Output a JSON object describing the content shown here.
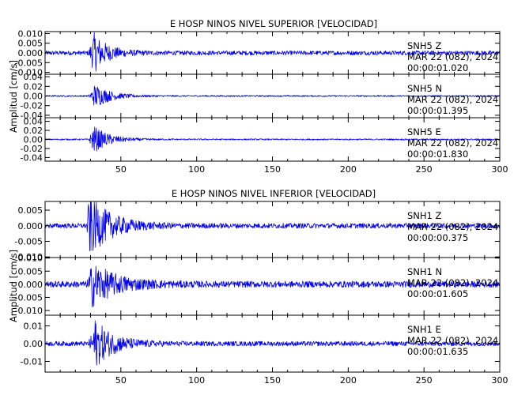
{
  "chart_data": [
    {
      "type": "line",
      "title": "E HOSP NINOS NIVEL SUPERIOR [VELOCIDAD]",
      "ylabel": "Amplitud [cm/s]",
      "xlabel": "",
      "xlim": [
        0,
        300
      ],
      "x_ticks": [
        "50",
        "100",
        "150",
        "200",
        "250",
        "300"
      ],
      "series": [
        {
          "station": "SNH5",
          "channel": "Z",
          "date": "MAR 22 (082), 2024",
          "time": "00:00:01.020",
          "ylim": [
            -0.011,
            0.011
          ],
          "y_ticks": [
            "0.010",
            "0.005",
            "0.000",
            "-0.005",
            "-0.010"
          ],
          "y_tick_values": [
            0.01,
            0.005,
            0.0,
            -0.005,
            -0.01
          ],
          "event_start": 28,
          "peak_time": 32,
          "peak_amplitude": 0.01,
          "noise_amplitude": 0.0011,
          "coda_decay": 9
        },
        {
          "station": "SNH5",
          "channel": "N",
          "date": "MAR 22 (082), 2024",
          "time": "00:00:01.395",
          "ylim": [
            -0.045,
            0.045
          ],
          "y_ticks": [
            "0.04",
            "0.02",
            "0.00",
            "-0.02",
            "-0.04"
          ],
          "y_tick_values": [
            0.04,
            0.02,
            0.0,
            -0.02,
            -0.04
          ],
          "event_start": 28,
          "peak_time": 33,
          "peak_amplitude": 0.025,
          "noise_amplitude": 0.0015,
          "coda_decay": 10
        },
        {
          "station": "SNH5",
          "channel": "E",
          "date": "MAR 22 (082), 2024",
          "time": "00:00:01.830",
          "ylim": [
            -0.048,
            0.048
          ],
          "y_ticks": [
            "0.04",
            "0.02",
            "0.00",
            "-0.02",
            "-0.04"
          ],
          "y_tick_values": [
            0.04,
            0.02,
            0.0,
            -0.02,
            -0.04
          ],
          "event_start": 28,
          "peak_time": 32,
          "peak_amplitude": 0.03,
          "noise_amplitude": 0.0015,
          "coda_decay": 10
        }
      ]
    },
    {
      "type": "line",
      "title": "E HOSP NINOS NIVEL INFERIOR [VELOCIDAD]",
      "ylabel": "Amplitud [cm/s]",
      "xlabel": "",
      "xlim": [
        0,
        300
      ],
      "x_ticks": [
        "50",
        "100",
        "150",
        "200",
        "250",
        "300"
      ],
      "series": [
        {
          "station": "SNH1",
          "channel": "Z",
          "date": "MAR 22 (082), 2024",
          "time": "00:00:00.375",
          "ylim": [
            -0.0102,
            0.0078
          ],
          "y_ticks": [
            "0.005",
            "0.000",
            "-0.005",
            "-0.010"
          ],
          "y_tick_values": [
            0.005,
            0.0,
            -0.005,
            -0.01
          ],
          "event_start": 27,
          "peak_time": 29,
          "peak_amplitude": 0.0098,
          "noise_amplitude": 0.0008,
          "coda_decay": 14
        },
        {
          "station": "SNH1",
          "channel": "N",
          "date": "MAR 22 (082), 2024",
          "time": "00:00:01.605",
          "ylim": [
            -0.0118,
            0.0102
          ],
          "y_ticks": [
            "0.010",
            "0.005",
            "0.000",
            "-0.005",
            "-0.010"
          ],
          "y_tick_values": [
            0.01,
            0.005,
            0.0,
            -0.005,
            -0.01
          ],
          "event_start": 27,
          "peak_time": 31,
          "peak_amplitude": 0.008,
          "noise_amplitude": 0.0012,
          "coda_decay": 16
        },
        {
          "station": "SNH1",
          "channel": "E",
          "date": "MAR 22 (082), 2024",
          "time": "00:00:01.635",
          "ylim": [
            -0.016,
            0.016
          ],
          "y_ticks": [
            "0.01",
            "0.00",
            "-0.01"
          ],
          "y_tick_values": [
            0.01,
            0.0,
            -0.01
          ],
          "event_start": 28,
          "peak_time": 33,
          "peak_amplitude": 0.013,
          "noise_amplitude": 0.0013,
          "coda_decay": 12
        }
      ]
    }
  ]
}
